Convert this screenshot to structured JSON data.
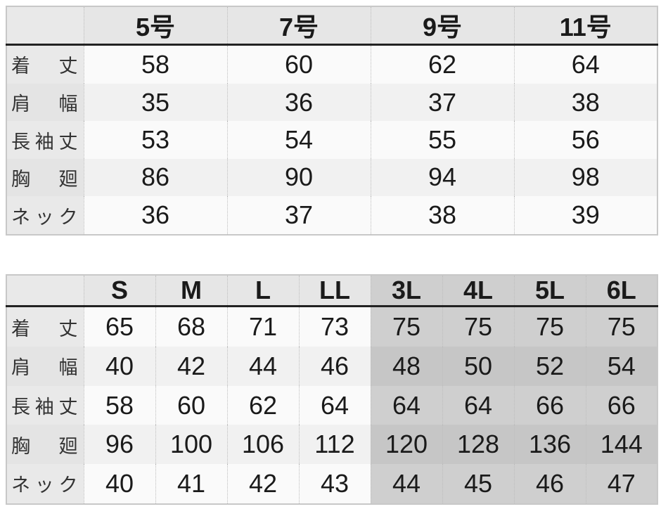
{
  "table1": {
    "headers": [
      "",
      "5号",
      "7号",
      "9号",
      "11号"
    ],
    "rows": [
      {
        "label": "着丈",
        "values": [
          "58",
          "60",
          "62",
          "64"
        ]
      },
      {
        "label": "肩幅",
        "values": [
          "35",
          "36",
          "37",
          "38"
        ]
      },
      {
        "label": "長袖丈",
        "values": [
          "53",
          "54",
          "55",
          "56"
        ]
      },
      {
        "label": "胸廻",
        "values": [
          "86",
          "90",
          "94",
          "98"
        ]
      },
      {
        "label": "ネック",
        "values": [
          "36",
          "37",
          "38",
          "39"
        ]
      }
    ]
  },
  "table2": {
    "headers": [
      "",
      "S",
      "M",
      "L",
      "LL",
      "3L",
      "4L",
      "5L",
      "6L"
    ],
    "rows": [
      {
        "label": "着丈",
        "values": [
          "65",
          "68",
          "71",
          "73",
          "75",
          "75",
          "75",
          "75"
        ]
      },
      {
        "label": "肩幅",
        "values": [
          "40",
          "42",
          "44",
          "46",
          "48",
          "50",
          "52",
          "54"
        ]
      },
      {
        "label": "長袖丈",
        "values": [
          "58",
          "60",
          "62",
          "64",
          "64",
          "64",
          "66",
          "66"
        ]
      },
      {
        "label": "胸廻",
        "values": [
          "96",
          "100",
          "106",
          "112",
          "120",
          "128",
          "136",
          "144"
        ]
      },
      {
        "label": "ネック",
        "values": [
          "40",
          "41",
          "42",
          "43",
          "44",
          "45",
          "46",
          "47"
        ]
      }
    ]
  },
  "colors": {
    "header_bg": "#e6e6e6",
    "large_size_bg": "#cfcfcf",
    "rule": "#222222"
  }
}
